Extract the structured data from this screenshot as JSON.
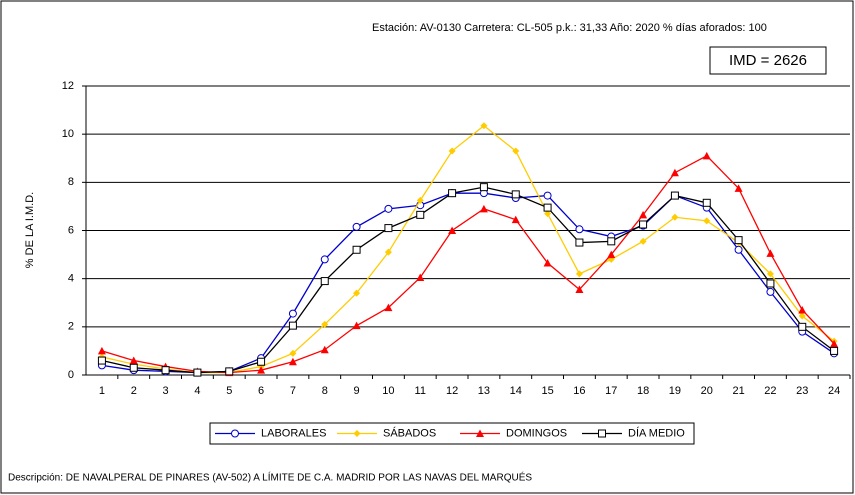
{
  "chart_data": {
    "type": "line",
    "header": "Estación: AV-0130   Carretera: CL-505   p.k.: 31,33   Año: 2020   % días aforados: 100",
    "imd": "IMD = 2626",
    "ylabel": "% DE LA I.M.D.",
    "description": "Descripción: DE NAVALPERAL DE PINARES (AV-502) A LÍMITE DE C.A. MADRID POR LAS NAVAS DEL MARQUÉS",
    "categories": [
      1,
      2,
      3,
      4,
      5,
      6,
      7,
      8,
      9,
      10,
      11,
      12,
      13,
      14,
      15,
      16,
      17,
      18,
      19,
      20,
      21,
      22,
      23,
      24
    ],
    "ylim": [
      0,
      12
    ],
    "yticks": [
      0,
      2,
      4,
      6,
      8,
      10,
      12
    ],
    "grid": true,
    "legend": "bottom",
    "series": [
      {
        "name": "LABORALES",
        "color": "#0000cc",
        "marker": "circle",
        "values": [
          0.4,
          0.2,
          0.15,
          0.1,
          0.15,
          0.7,
          2.55,
          4.8,
          6.15,
          6.9,
          7.05,
          7.55,
          7.55,
          7.35,
          7.45,
          6.05,
          5.75,
          6.2,
          7.45,
          6.95,
          5.2,
          3.45,
          1.8,
          0.9
        ]
      },
      {
        "name": "SÁBADOS",
        "color": "#ffcc00",
        "marker": "diamond",
        "values": [
          0.75,
          0.45,
          0.25,
          0.1,
          0.1,
          0.35,
          0.9,
          2.1,
          3.4,
          5.1,
          7.25,
          9.3,
          10.35,
          9.3,
          6.7,
          4.2,
          4.8,
          5.55,
          6.55,
          6.4,
          5.5,
          4.2,
          2.45,
          1.4
        ]
      },
      {
        "name": "DOMINGOS",
        "color": "#ff0000",
        "marker": "triangle",
        "values": [
          1.0,
          0.6,
          0.35,
          0.15,
          0.1,
          0.2,
          0.55,
          1.05,
          2.05,
          2.8,
          4.05,
          6.0,
          6.9,
          6.45,
          4.65,
          3.55,
          5.0,
          6.65,
          8.4,
          9.1,
          7.75,
          5.05,
          2.7,
          1.3
        ]
      },
      {
        "name": "DÍA MEDIO",
        "color": "#000000",
        "marker": "square",
        "values": [
          0.6,
          0.3,
          0.2,
          0.1,
          0.15,
          0.55,
          2.05,
          3.9,
          5.2,
          6.1,
          6.65,
          7.55,
          7.8,
          7.5,
          6.95,
          5.5,
          5.55,
          6.25,
          7.45,
          7.15,
          5.6,
          3.8,
          2.0,
          1.0
        ]
      }
    ]
  }
}
